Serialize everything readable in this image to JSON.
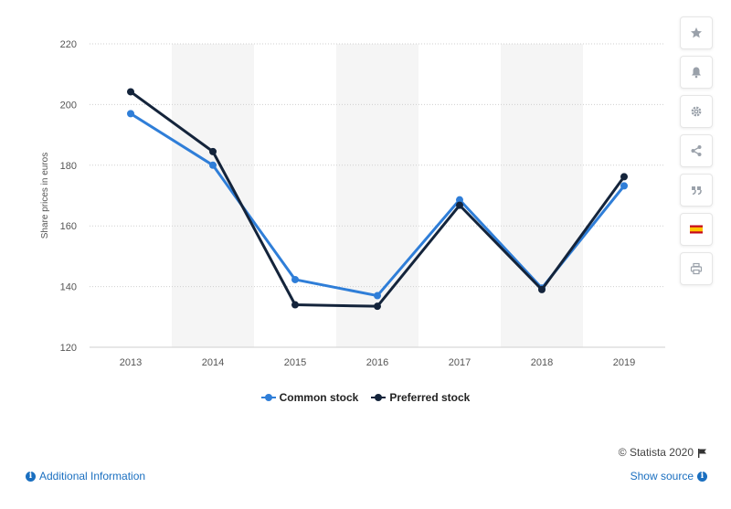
{
  "chart_data": {
    "type": "line",
    "categories": [
      "2013",
      "2014",
      "2015",
      "2016",
      "2017",
      "2018",
      "2019"
    ],
    "series": [
      {
        "name": "Common stock",
        "values": [
          197,
          180,
          142.3,
          137,
          168.6,
          139.5,
          173.2
        ],
        "color": "#2f7ed8"
      },
      {
        "name": "Preferred stock",
        "values": [
          204.2,
          184.5,
          134,
          133.5,
          166.8,
          139,
          176.2
        ],
        "color": "#14243b"
      }
    ],
    "title": "",
    "xlabel": "",
    "ylabel": "Share prices in euros",
    "ylim": [
      120,
      220
    ],
    "yticks": [
      120,
      140,
      160,
      180,
      200,
      220
    ],
    "grid": "horizontal dotted",
    "legend": "bottom-center"
  },
  "footer": {
    "credit": "© Statista 2020",
    "additional_info": "Additional Information",
    "show_source": "Show source"
  },
  "sidebar": {
    "icons": [
      "star-icon",
      "bell-icon",
      "gear-icon",
      "share-icon",
      "quote-icon",
      "flag-spain-icon",
      "print-icon"
    ]
  }
}
